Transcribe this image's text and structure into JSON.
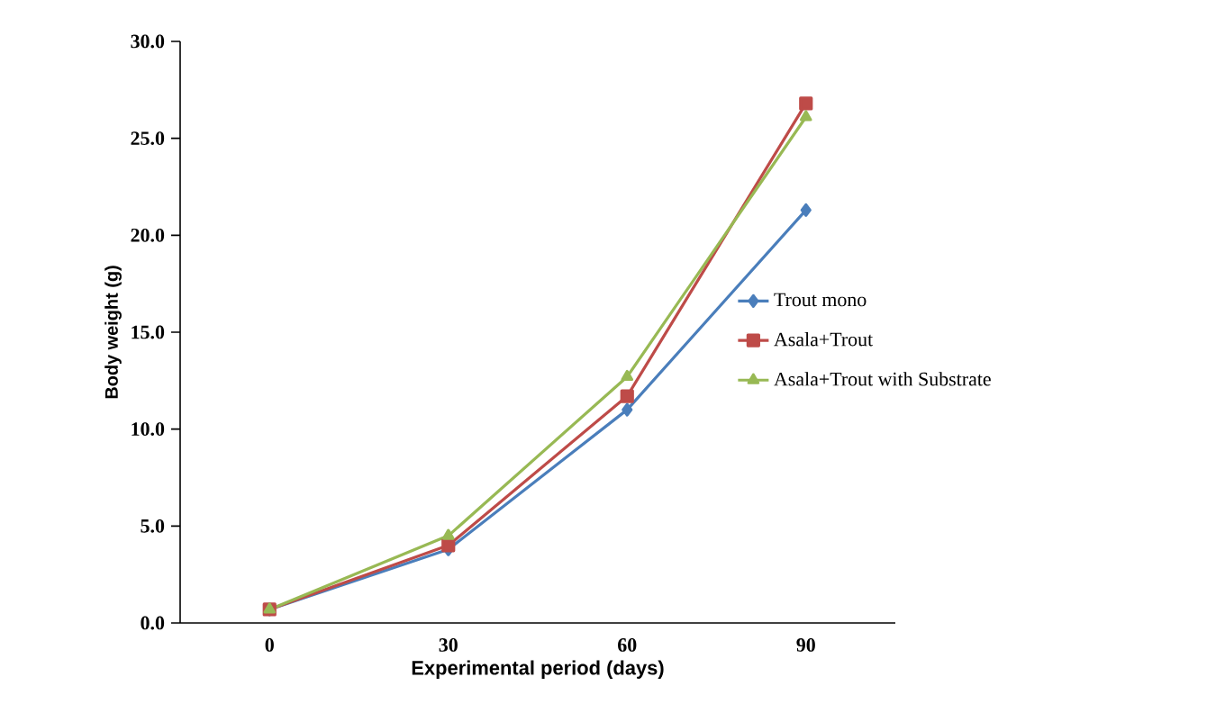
{
  "chart_data": {
    "type": "line",
    "xlabel": "Experimental period (days)",
    "ylabel": "Body weight (g)",
    "categories": [
      "0",
      "30",
      "60",
      "90"
    ],
    "series": [
      {
        "name": "Trout mono",
        "color": "#4a7ebb",
        "marker": "diamond",
        "values": [
          0.7,
          3.8,
          11.0,
          21.3
        ]
      },
      {
        "name": "Asala+Trout",
        "color": "#be4b48",
        "marker": "square",
        "values": [
          0.7,
          4.0,
          11.7,
          26.8
        ]
      },
      {
        "name": "Asala+Trout with Substrate",
        "color": "#98b954",
        "marker": "triangle",
        "values": [
          0.7,
          4.5,
          12.7,
          26.1
        ]
      }
    ],
    "ylim": [
      0,
      30
    ],
    "yticks": [
      {
        "value": 0,
        "label": "0.0"
      },
      {
        "value": 5,
        "label": "5.0"
      },
      {
        "value": 10,
        "label": "10.0"
      },
      {
        "value": 15,
        "label": "15.0"
      },
      {
        "value": 20,
        "label": "20.0"
      },
      {
        "value": 25,
        "label": "25.0"
      },
      {
        "value": 30,
        "label": "30.0"
      }
    ],
    "grid": false,
    "legend": "right"
  }
}
